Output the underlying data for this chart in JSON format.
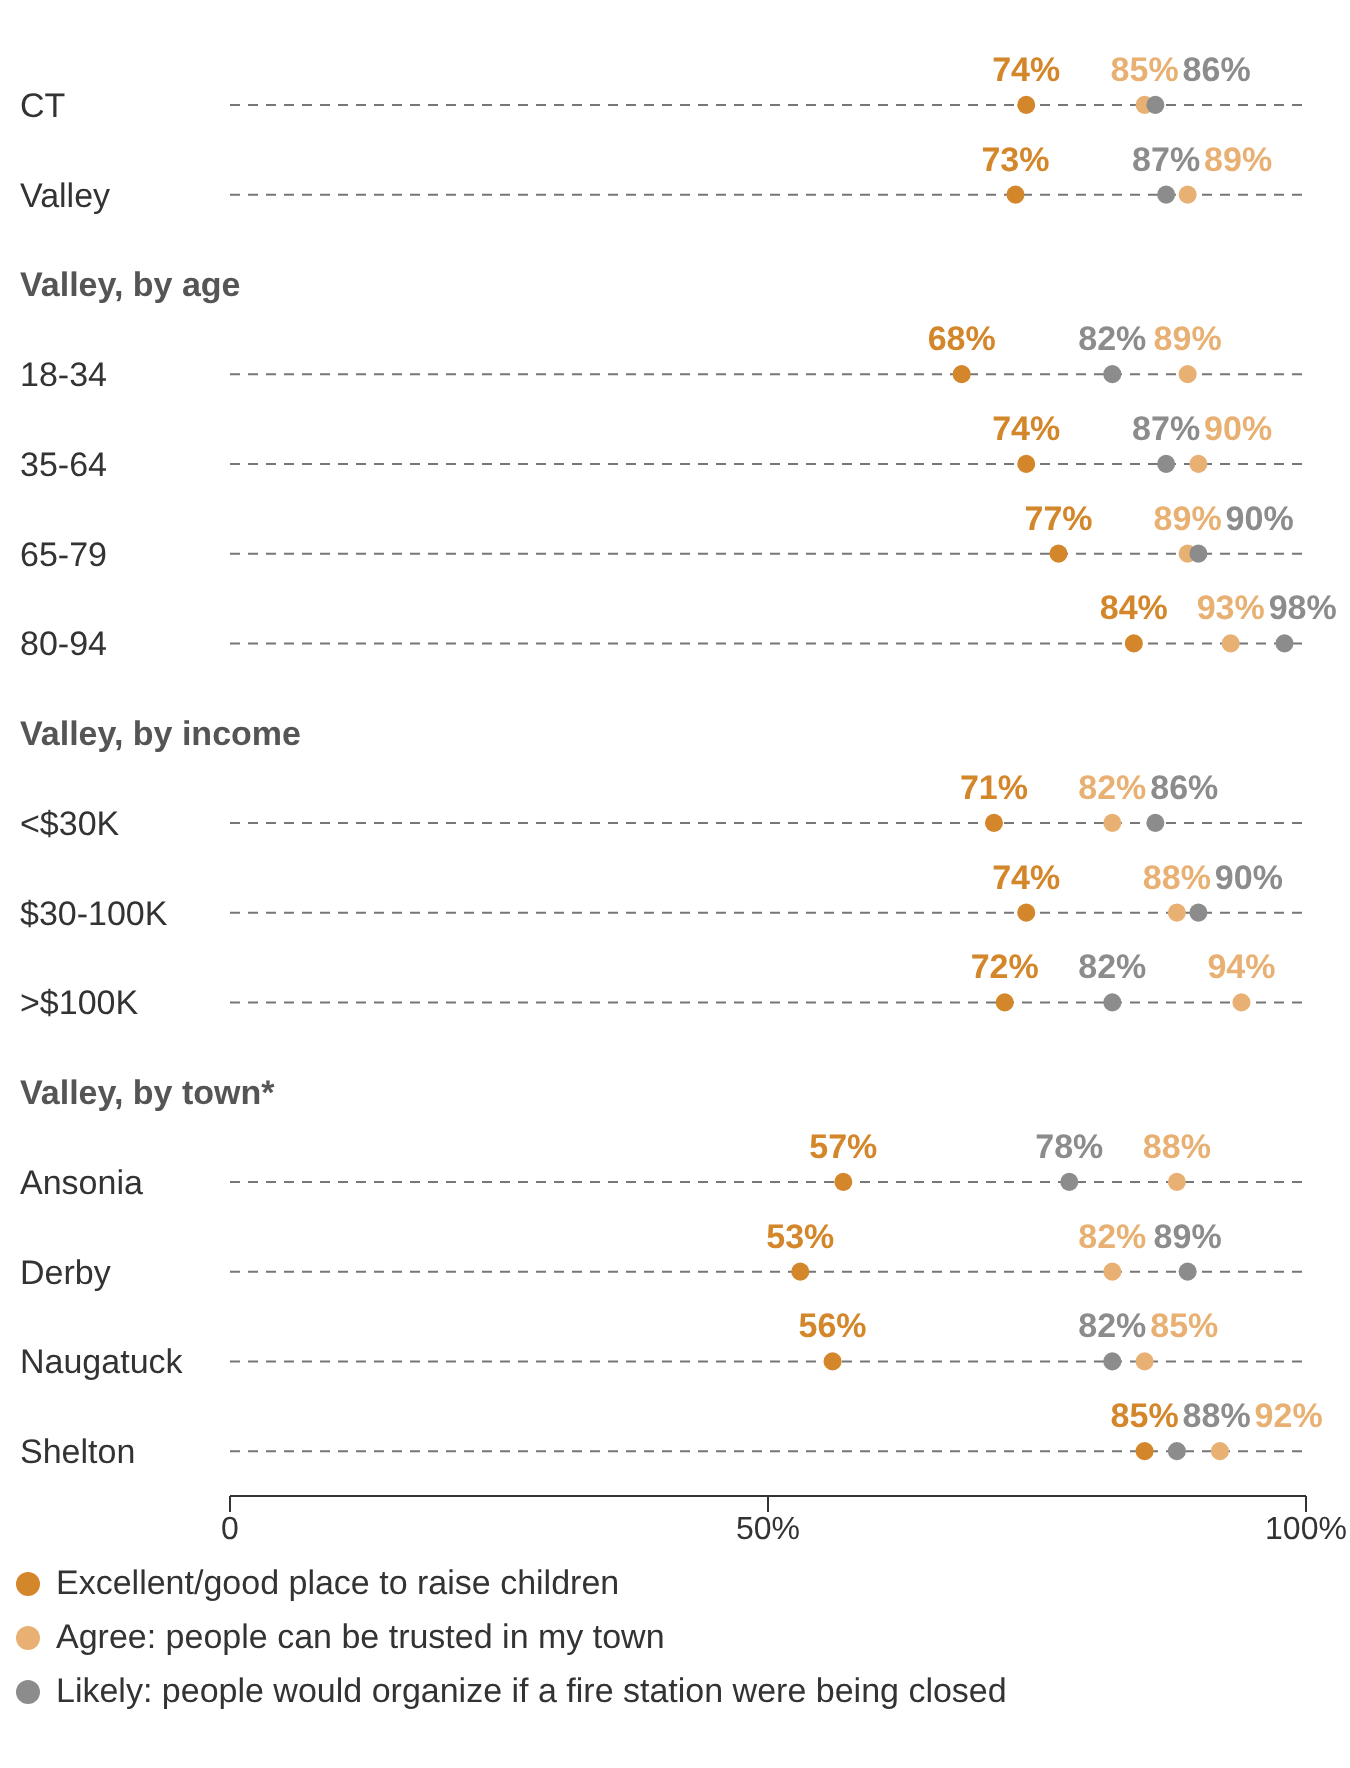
{
  "chart_data": {
    "type": "scatter",
    "categories": [
      "CT",
      "Valley",
      "Valley, by age",
      "18-34",
      "35-64",
      "65-79",
      "80-94",
      "Valley, by income",
      "<$30K",
      "$30-100K",
      ">$100K",
      "Valley, by town*",
      "Ansonia",
      "Derby",
      "Naugatuck",
      "Shelton"
    ],
    "series": [
      {
        "name": "Excellent/good place to raise children",
        "color": "#d4862a",
        "values": [
          74,
          73,
          null,
          68,
          74,
          77,
          84,
          null,
          71,
          74,
          72,
          null,
          57,
          53,
          56,
          85
        ],
        "value_labels": [
          "74%",
          "73%",
          null,
          "68%",
          "74%",
          "77%",
          "84%",
          null,
          "71%",
          "74%",
          "72%",
          null,
          "57%",
          "53%",
          "56%",
          "85%"
        ]
      },
      {
        "name": "Agree: people can be trusted in my town",
        "color": "#e8b173",
        "values": [
          85,
          89,
          null,
          89,
          90,
          89,
          93,
          null,
          82,
          88,
          94,
          null,
          88,
          82,
          85,
          92
        ],
        "value_labels": [
          "85%",
          "89%",
          null,
          "89%",
          "90%",
          "89%",
          "93%",
          null,
          "82%",
          "88%",
          "94%",
          null,
          "88%",
          "82%",
          "85%",
          "92%"
        ]
      },
      {
        "name": "Likely: people would organize if a fire station were being closed",
        "color": "#8c8c8c",
        "values": [
          86,
          87,
          null,
          82,
          87,
          90,
          98,
          null,
          86,
          90,
          82,
          null,
          78,
          89,
          82,
          88
        ],
        "value_labels": [
          "86%",
          "87%",
          null,
          "82%",
          "87%",
          "90%",
          "98%",
          null,
          "86%",
          "90%",
          "82%",
          null,
          "78%",
          "89%",
          "82%",
          "88%"
        ]
      }
    ],
    "xlim": [
      0,
      100
    ],
    "xticks": [
      0,
      {
        "value": 50,
        "label": "50%"
      },
      {
        "value": 100,
        "label": "100%"
      }
    ],
    "orientation": "horizontal",
    "grid": "y",
    "legend": "bottom",
    "marker": "circle"
  }
}
